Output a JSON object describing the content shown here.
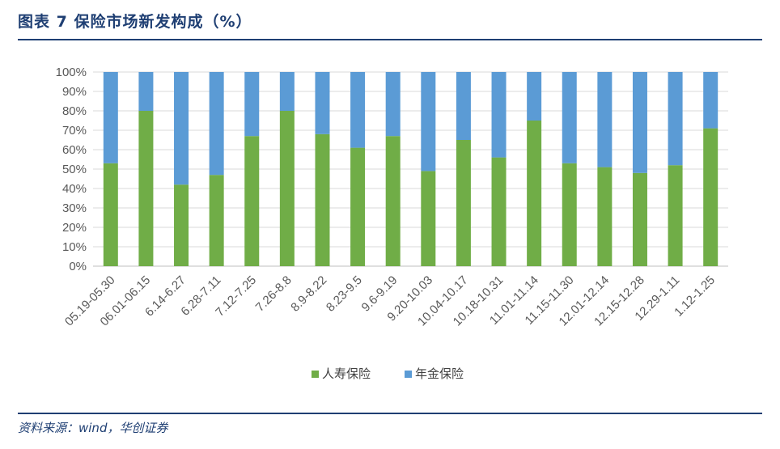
{
  "header": {
    "title": "图表 7   保险市场新发构成（%）"
  },
  "footer": {
    "source": "资料来源：wind，华创证券"
  },
  "colors": {
    "series1": "#70ad47",
    "series2": "#5b9bd5",
    "grid": "#d9d9d9",
    "title": "#1f3f73"
  },
  "chart_data": {
    "type": "bar",
    "stacked": true,
    "percent": true,
    "categories": [
      "05.19-05.30",
      "06.01-06.15",
      "6.14-6.27",
      "6.28-7.11",
      "7.12-7.25",
      "7.26-8.8",
      "8.9-8.22",
      "8.23-9.5",
      "9.6-9.19",
      "9.20-10.03",
      "10.04-10.17",
      "10.18-10.31",
      "11.01-11.14",
      "11.15-11.30",
      "12.01-12.14",
      "12.15-12.28",
      "12.29-1.11",
      "1.12-1.25"
    ],
    "series": [
      {
        "name": "人寿保险",
        "values": [
          53,
          80,
          42,
          47,
          67,
          80,
          68,
          61,
          67,
          49,
          65,
          56,
          75,
          53,
          51,
          48,
          52,
          71
        ]
      },
      {
        "name": "年金保险",
        "values": [
          47,
          20,
          58,
          53,
          33,
          20,
          32,
          39,
          33,
          51,
          35,
          44,
          25,
          47,
          49,
          52,
          48,
          29
        ]
      }
    ],
    "ylim": [
      0,
      100
    ],
    "yticks": [
      "0%",
      "10%",
      "20%",
      "30%",
      "40%",
      "50%",
      "60%",
      "70%",
      "80%",
      "90%",
      "100%"
    ],
    "grid": true,
    "legend": "bottom"
  }
}
